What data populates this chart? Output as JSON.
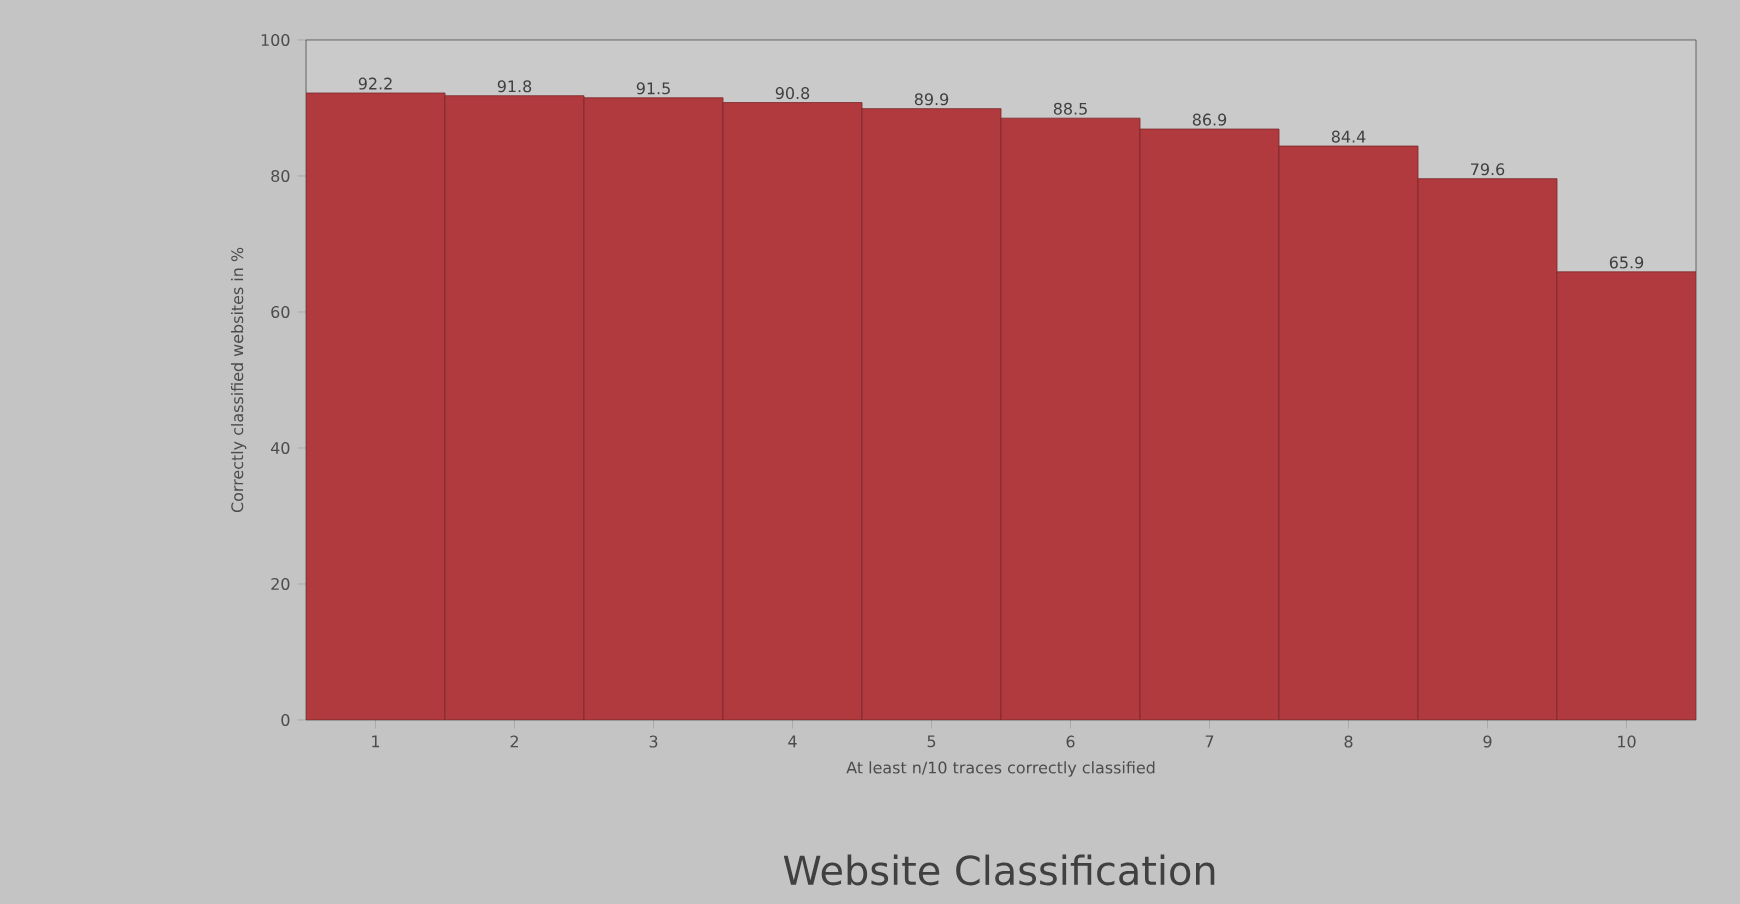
{
  "chart_data": {
    "type": "bar",
    "title": "Website Classification",
    "xlabel": "At least n/10 traces correctly classified",
    "ylabel": "Correctly classified websites in %",
    "categories": [
      "1",
      "2",
      "3",
      "4",
      "5",
      "6",
      "7",
      "8",
      "9",
      "10"
    ],
    "values": [
      92.2,
      91.8,
      91.5,
      90.8,
      89.9,
      88.5,
      86.9,
      84.4,
      79.6,
      65.9
    ],
    "color": "#b03a3e",
    "data_labels": true,
    "ylim": [
      0,
      100
    ],
    "yticks": [
      0,
      20,
      40,
      60,
      80,
      100
    ],
    "grid": false
  }
}
